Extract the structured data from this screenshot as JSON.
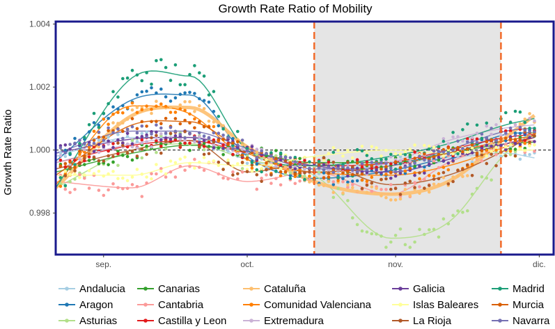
{
  "chart_data": {
    "type": "scatter",
    "title": "Growth Rate Ratio of Mobility",
    "xlabel": "",
    "ylabel": "Growth Rate Ratio",
    "x_ticks": [
      "sep.",
      "oct.",
      "nov.",
      "dic."
    ],
    "x_tick_days": [
      0,
      30,
      61,
      91
    ],
    "xlim": [
      -10,
      94
    ],
    "y_ticks": [
      "0.998",
      "1.000",
      "1.002",
      "1.004"
    ],
    "y_tick_values": [
      0.998,
      1.0,
      1.002,
      1.004
    ],
    "ylim": [
      0.99668,
      1.00408
    ],
    "reference_line": {
      "y": 1.0,
      "style": "dashed"
    },
    "shaded_period": {
      "start_day": 44,
      "end_day": 83,
      "color": "#e5e5e5",
      "border_color": "#f26b2a"
    },
    "legend_position": "bottom",
    "series": [
      {
        "name": "Andalucia",
        "color": "#a6cee3",
        "points": [
          [
            -10,
            0.9998
          ],
          [
            6,
            1.0004
          ],
          [
            18,
            1.0004
          ],
          [
            30,
            0.9997
          ],
          [
            44,
            0.9993
          ],
          [
            60,
            0.9996
          ],
          [
            72,
            0.99975
          ],
          [
            84,
            0.9999
          ],
          [
            90,
            0.99975
          ]
        ]
      },
      {
        "name": "Aragon",
        "color": "#1f78b4",
        "points": [
          [
            -10,
            0.99965
          ],
          [
            6,
            1.0016
          ],
          [
            18,
            1.00175
          ],
          [
            30,
            0.9998
          ],
          [
            44,
            0.9991
          ],
          [
            60,
            0.99935
          ],
          [
            72,
            0.9998
          ],
          [
            84,
            1.0005
          ],
          [
            90,
            1.00055
          ]
        ]
      },
      {
        "name": "Asturias",
        "color": "#b2df8a",
        "points": [
          [
            -10,
            0.9988
          ],
          [
            6,
            1.0
          ],
          [
            18,
            1.0002
          ],
          [
            30,
            0.9997
          ],
          [
            44,
            0.9992
          ],
          [
            60,
            0.9972
          ],
          [
            72,
            0.9977
          ],
          [
            84,
            0.9999
          ],
          [
            90,
            1.0006
          ]
        ]
      },
      {
        "name": "Canarias",
        "color": "#33a02c",
        "points": [
          [
            -10,
            0.9993
          ],
          [
            6,
            0.9999
          ],
          [
            18,
            1.00015
          ],
          [
            30,
            0.99995
          ],
          [
            44,
            0.9996
          ],
          [
            60,
            0.9996
          ],
          [
            72,
            0.9999
          ],
          [
            84,
            1.0002
          ],
          [
            90,
            1.00025
          ]
        ]
      },
      {
        "name": "Cantabria",
        "color": "#fb9a99",
        "points": [
          [
            -10,
            0.999
          ],
          [
            6,
            0.9988
          ],
          [
            18,
            0.9995
          ],
          [
            30,
            0.999
          ],
          [
            44,
            0.9993
          ],
          [
            60,
            0.9986
          ],
          [
            72,
            0.9996
          ],
          [
            84,
            1.0002
          ],
          [
            90,
            1.0003
          ]
        ]
      },
      {
        "name": "Castilla y Leon",
        "color": "#e31a1c",
        "points": [
          [
            -10,
            0.9996
          ],
          [
            6,
            1.00015
          ],
          [
            18,
            1.0003
          ],
          [
            30,
            0.9999
          ],
          [
            44,
            0.9995
          ],
          [
            60,
            0.9996
          ],
          [
            72,
            1.0
          ],
          [
            84,
            1.0004
          ],
          [
            90,
            1.0005
          ]
        ]
      },
      {
        "name": "Cataluña",
        "color": "#fdbf6f",
        "points": [
          [
            -10,
            0.9988
          ],
          [
            6,
            1.0011
          ],
          [
            18,
            1.00135
          ],
          [
            30,
            1.0001
          ],
          [
            44,
            0.999
          ],
          [
            60,
            0.9986
          ],
          [
            72,
            0.999
          ],
          [
            84,
            1.0004
          ],
          [
            90,
            1.0011
          ]
        ]
      },
      {
        "name": "Comunidad Valenciana",
        "color": "#ff7f00",
        "points": [
          [
            -10,
            0.9989
          ],
          [
            6,
            1.0014
          ],
          [
            18,
            1.00115
          ],
          [
            30,
            0.9997
          ],
          [
            44,
            0.9993
          ],
          [
            60,
            0.9992
          ],
          [
            72,
            0.9995
          ],
          [
            84,
            1.0001
          ],
          [
            90,
            1.0004
          ]
        ]
      },
      {
        "name": "Extremadura",
        "color": "#cab2d6",
        "points": [
          [
            -10,
            0.9996
          ],
          [
            6,
            1.0002
          ],
          [
            18,
            1.0004
          ],
          [
            30,
            1.0
          ],
          [
            44,
            0.9993
          ],
          [
            60,
            0.9996
          ],
          [
            72,
            1.0003
          ],
          [
            84,
            1.0007
          ],
          [
            90,
            1.0008
          ]
        ]
      },
      {
        "name": "Galicia",
        "color": "#6a3d9a",
        "points": [
          [
            -10,
            0.9999
          ],
          [
            6,
            1.00035
          ],
          [
            18,
            1.0004
          ],
          [
            30,
            0.99995
          ],
          [
            44,
            0.9995
          ],
          [
            60,
            0.9993
          ],
          [
            72,
            0.9997
          ],
          [
            84,
            1.0002
          ],
          [
            90,
            1.0004
          ]
        ]
      },
      {
        "name": "Islas Baleares",
        "color": "#ffff99",
        "points": [
          [
            -10,
            0.9992
          ],
          [
            6,
            0.9992
          ],
          [
            18,
            0.9996
          ],
          [
            30,
            0.9995
          ],
          [
            44,
            0.9998
          ],
          [
            60,
            1.0
          ],
          [
            72,
            0.9999
          ],
          [
            84,
            1.0
          ],
          [
            90,
            1.0
          ]
        ]
      },
      {
        "name": "La Rioja",
        "color": "#b15928",
        "points": [
          [
            -10,
            0.9994
          ],
          [
            6,
            1.0
          ],
          [
            18,
            1.0003
          ],
          [
            30,
            0.9993
          ],
          [
            44,
            0.9996
          ],
          [
            60,
            0.9989
          ],
          [
            72,
            0.9992
          ],
          [
            84,
            1.0
          ],
          [
            90,
            1.0005
          ]
        ]
      },
      {
        "name": "Madrid",
        "color": "#1b9e77",
        "points": [
          [
            -10,
            0.9988
          ],
          [
            6,
            1.0023
          ],
          [
            18,
            1.00235
          ],
          [
            30,
            1.0
          ],
          [
            44,
            0.9995
          ],
          [
            60,
            0.9998
          ],
          [
            72,
            1.0002
          ],
          [
            84,
            1.0008
          ],
          [
            90,
            1.001
          ]
        ]
      },
      {
        "name": "Murcia",
        "color": "#d95f02",
        "points": [
          [
            -10,
            0.9992
          ],
          [
            6,
            1.0008
          ],
          [
            18,
            1.0009
          ],
          [
            30,
            0.9999
          ],
          [
            44,
            0.9993
          ],
          [
            60,
            0.9995
          ],
          [
            72,
            0.9999
          ],
          [
            84,
            1.0003
          ],
          [
            90,
            1.00045
          ]
        ]
      },
      {
        "name": "Navarra",
        "color": "#7570b3",
        "points": [
          [
            -10,
            0.9999
          ],
          [
            6,
            1.0006
          ],
          [
            18,
            1.0006
          ],
          [
            30,
            1.00005
          ],
          [
            44,
            0.9994
          ],
          [
            60,
            0.9995
          ],
          [
            72,
            1.0
          ],
          [
            84,
            1.0006
          ],
          [
            90,
            1.0007
          ]
        ]
      }
    ]
  }
}
